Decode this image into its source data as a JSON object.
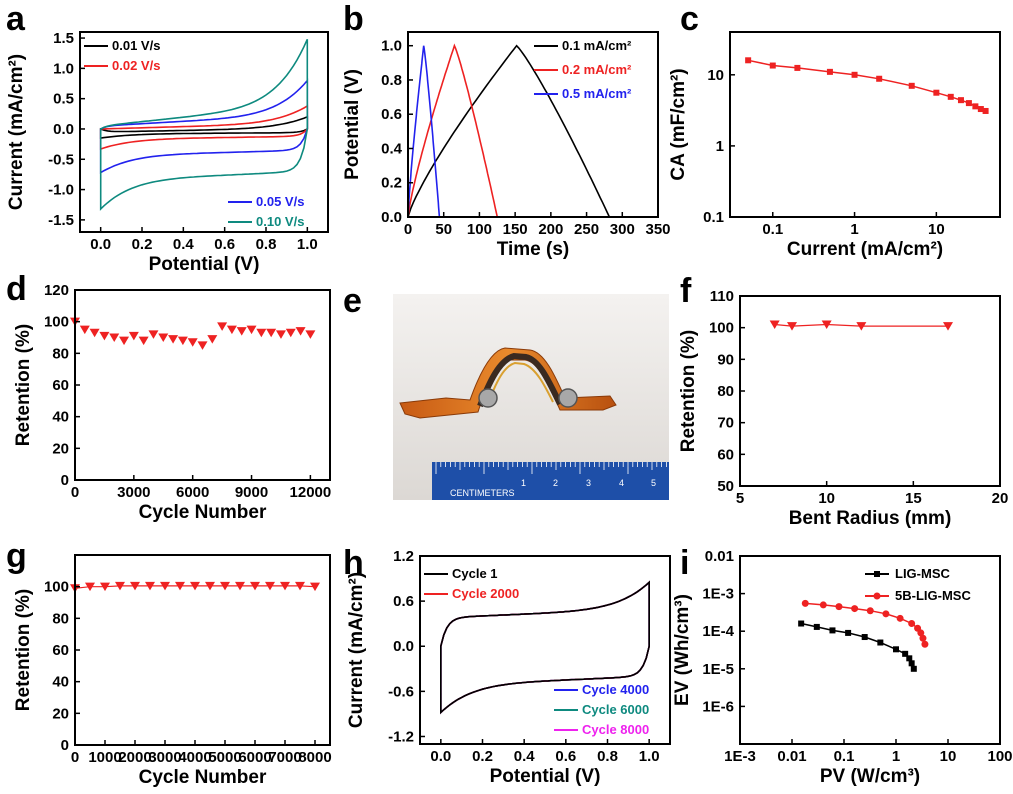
{
  "figure": {
    "panel_labels": [
      "a",
      "b",
      "c",
      "d",
      "e",
      "f",
      "g",
      "h",
      "i"
    ]
  },
  "chart_data": [
    {
      "panel": "a",
      "type": "line",
      "xlabel": "Potential (V)",
      "ylabel": "Current (mA/cm²)",
      "xlim": [
        -0.1,
        1.1
      ],
      "ylim": [
        -1.7,
        1.6
      ],
      "xticks": [
        "0.0",
        "0.2",
        "0.4",
        "0.6",
        "0.8",
        "1.0"
      ],
      "yticks": [
        "-1.5",
        "-1.0",
        "-0.5",
        "0.0",
        "0.5",
        "1.0",
        "1.5"
      ],
      "series": [
        {
          "name": "0.01 V/s",
          "color": "#000000",
          "legend_pos": "top-left",
          "cv": {
            "top_start": -0.05,
            "top_end": 0.2,
            "bottom_start": -0.15,
            "bottom_end": -0.06
          }
        },
        {
          "name": "0.02 V/s",
          "color": "#ee2222",
          "legend_pos": "top-left",
          "cv": {
            "top_start": 0.0,
            "top_end": 0.38,
            "bottom_start": -0.33,
            "bottom_end": -0.12
          }
        },
        {
          "name": "0.05 V/s",
          "color": "#2222ee",
          "legend_pos": "bottom-right",
          "cv": {
            "top_start": 0.05,
            "top_end": 0.8,
            "bottom_start": -0.72,
            "bottom_end": -0.35
          }
        },
        {
          "name": "0.10 V/s",
          "color": "#0e8a7f",
          "legend_pos": "bottom-right",
          "cv": {
            "top_start": 0.05,
            "top_end": 1.48,
            "bottom_start": -1.32,
            "bottom_end": -0.7
          }
        }
      ]
    },
    {
      "panel": "b",
      "type": "line",
      "xlabel": "Time (s)",
      "ylabel": "Potential (V)",
      "xlim": [
        0,
        350
      ],
      "ylim": [
        0,
        1.08
      ],
      "xticks": [
        "0",
        "50",
        "100",
        "150",
        "200",
        "250",
        "300",
        "350"
      ],
      "yticks": [
        "0.0",
        "0.2",
        "0.4",
        "0.6",
        "0.8",
        "1.0"
      ],
      "series": [
        {
          "name": "0.1 mA/cm²",
          "color": "#000000",
          "points": [
            [
              0,
              0
            ],
            [
              152,
              1.0
            ],
            [
              282,
              0
            ]
          ]
        },
        {
          "name": "0.2 mA/cm²",
          "color": "#ee2222",
          "points": [
            [
              0,
              0
            ],
            [
              65,
              1.0
            ],
            [
              125,
              0
            ]
          ]
        },
        {
          "name": "0.5 mA/cm²",
          "color": "#2222ee",
          "points": [
            [
              0,
              0
            ],
            [
              22,
              1.0
            ],
            [
              44,
              0
            ]
          ]
        }
      ]
    },
    {
      "panel": "c",
      "type": "line",
      "xscale": "log",
      "yscale": "log",
      "xlabel": "Current (mA/cm²)",
      "ylabel": "CA (mF/cm²)",
      "xlim": [
        0.03,
        60
      ],
      "ylim": [
        0.1,
        40
      ],
      "xticks": [
        "0.1",
        "1",
        "10"
      ],
      "yticks": [
        "0.1",
        "1",
        "10"
      ],
      "series": [
        {
          "name": "",
          "color": "#ee2222",
          "x": [
            0.05,
            0.1,
            0.2,
            0.5,
            1,
            2,
            5,
            10,
            15,
            20,
            25,
            30,
            35,
            40
          ],
          "y": [
            16,
            13.5,
            12.5,
            11,
            10,
            8.8,
            7,
            5.6,
            4.9,
            4.4,
            4.0,
            3.6,
            3.3,
            3.1
          ]
        }
      ]
    },
    {
      "panel": "d",
      "type": "scatter",
      "marker": "triangle-down",
      "xlabel": "Cycle Number",
      "ylabel": "Retention (%)",
      "xlim": [
        0,
        13000
      ],
      "ylim": [
        0,
        120
      ],
      "xticks": [
        "0",
        "3000",
        "6000",
        "9000",
        "12000"
      ],
      "yticks": [
        "0",
        "20",
        "40",
        "60",
        "80",
        "100",
        "120"
      ],
      "series": [
        {
          "name": "",
          "color": "#ee2222",
          "x": [
            0,
            500,
            1000,
            1500,
            2000,
            2500,
            3000,
            3500,
            4000,
            4500,
            5000,
            5500,
            6000,
            6500,
            7000,
            7500,
            8000,
            8500,
            9000,
            9500,
            10000,
            10500,
            11000,
            11500,
            12000
          ],
          "y": [
            100,
            95,
            93,
            91,
            90,
            88,
            91,
            88,
            92,
            90,
            89,
            88,
            87,
            85,
            89,
            97,
            95,
            94,
            95,
            93,
            93,
            92,
            93,
            94,
            92
          ]
        }
      ]
    },
    {
      "panel": "f",
      "type": "line",
      "marker": "triangle-down",
      "xlabel": "Bent Radius (mm)",
      "ylabel": "Retention (%)",
      "xlim": [
        5,
        20
      ],
      "ylim": [
        50,
        110
      ],
      "xticks": [
        "5",
        "10",
        "15",
        "20"
      ],
      "yticks": [
        "50",
        "60",
        "70",
        "80",
        "90",
        "100",
        "110"
      ],
      "series": [
        {
          "name": "",
          "color": "#ee2222",
          "x": [
            7,
            8,
            10,
            12,
            17
          ],
          "y": [
            101,
            100.5,
            101,
            100.5,
            100.5
          ]
        }
      ]
    },
    {
      "panel": "g",
      "type": "line",
      "marker": "triangle-down",
      "xlabel": "Cycle Number",
      "ylabel": "Retention (%)",
      "xlim": [
        0,
        8500
      ],
      "ylim": [
        0,
        120
      ],
      "xticks": [
        "0",
        "1000",
        "2000",
        "3000",
        "4000",
        "5000",
        "6000",
        "7000",
        "8000"
      ],
      "yticks": [
        "0",
        "20",
        "40",
        "60",
        "80",
        "100"
      ],
      "series": [
        {
          "name": "",
          "color": "#ee2222",
          "x": [
            0,
            500,
            1000,
            1500,
            2000,
            2500,
            3000,
            3500,
            4000,
            4500,
            5000,
            5500,
            6000,
            6500,
            7000,
            7500,
            8000
          ],
          "y": [
            99,
            100,
            100,
            100.5,
            100.5,
            100.5,
            100.5,
            100.5,
            100.5,
            100.5,
            100.5,
            100.5,
            100.5,
            100.5,
            100.5,
            100.5,
            100
          ]
        }
      ]
    },
    {
      "panel": "h",
      "type": "line",
      "xlabel": "Potential (V)",
      "ylabel": "Current (mA/cm²)",
      "xlim": [
        -0.1,
        1.1
      ],
      "ylim": [
        -1.3,
        1.2
      ],
      "xticks": [
        "0.0",
        "0.2",
        "0.4",
        "0.6",
        "0.8",
        "1.0"
      ],
      "yticks": [
        "-1.2",
        "-0.6",
        "0.0",
        "0.6",
        "1.2"
      ],
      "series": [
        {
          "name": "Cycle 1",
          "color": "#000000",
          "legend_pos": "top-left"
        },
        {
          "name": "Cycle 2000",
          "color": "#ee2222",
          "legend_pos": "top-left"
        },
        {
          "name": "Cycle 4000",
          "color": "#2222ee",
          "legend_pos": "bottom-right"
        },
        {
          "name": "Cycle 6000",
          "color": "#0e8a7f",
          "legend_pos": "bottom-right"
        },
        {
          "name": "Cycle 8000",
          "color": "#ee22ee",
          "legend_pos": "bottom-right"
        }
      ],
      "cv": {
        "top_start": 0.38,
        "top_end": 0.85,
        "bottom_start": -0.88,
        "bottom_end": -0.4
      }
    },
    {
      "panel": "i",
      "type": "line",
      "xscale": "log",
      "yscale": "log",
      "xlabel": "PV (W/cm³)",
      "ylabel": "EV (Wh/cm³)",
      "xlim": [
        0.001,
        100
      ],
      "ylim": [
        1e-07,
        0.01
      ],
      "xticks": [
        "1E-3",
        "0.01",
        "0.1",
        "1",
        "10",
        "100"
      ],
      "yticks": [
        "1E-6",
        "1E-5",
        "1E-4",
        "1E-3",
        "0.01"
      ],
      "series": [
        {
          "name": "LIG-MSC",
          "color": "#000000",
          "marker": "square",
          "x": [
            0.015,
            0.03,
            0.06,
            0.12,
            0.25,
            0.5,
            1.0,
            1.5,
            1.8,
            2.0,
            2.2
          ],
          "y": [
            0.00016,
            0.00013,
            0.000105,
            9e-05,
            7e-05,
            5e-05,
            3.3e-05,
            2.5e-05,
            1.9e-05,
            1.4e-05,
            1e-05
          ]
        },
        {
          "name": "5B-LIG-MSC",
          "color": "#ee2222",
          "marker": "circle",
          "x": [
            0.018,
            0.04,
            0.08,
            0.16,
            0.32,
            0.64,
            1.2,
            2.0,
            2.6,
            3.0,
            3.3,
            3.6
          ],
          "y": [
            0.00055,
            0.0005,
            0.00045,
            0.0004,
            0.00035,
            0.00029,
            0.00022,
            0.00016,
            0.00012,
            9e-05,
            6.5e-05,
            4.5e-05
          ]
        }
      ]
    }
  ],
  "photo": {
    "panel": "e",
    "ruler_text": "CENTIMETERS",
    "ruler_numbers": [
      "1",
      "2",
      "3",
      "4",
      "5"
    ]
  }
}
